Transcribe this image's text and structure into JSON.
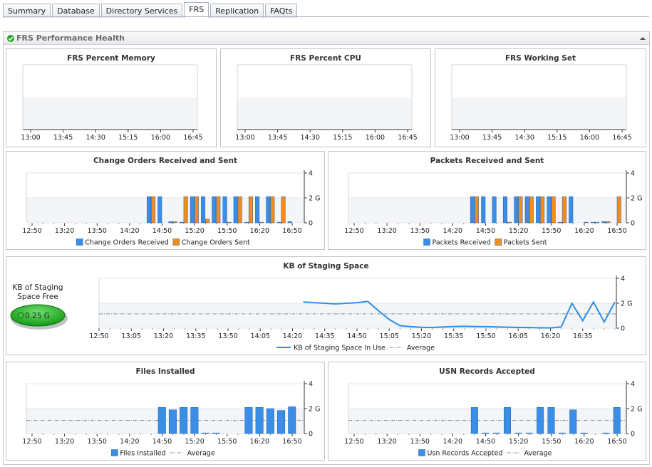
{
  "tabs": [
    "Summary",
    "Database",
    "Directory Services",
    "FRS",
    "Replication",
    "FAQts"
  ],
  "active_tab": 3,
  "panel_title": "FRS Performance Health",
  "chart_data": [
    {
      "type": "line",
      "title": "FRS Percent Memory",
      "categories": [
        "13:00",
        "13:45",
        "14:30",
        "15:15",
        "16:00",
        "16:45"
      ],
      "series": []
    },
    {
      "type": "line",
      "title": "FRS Percent CPU",
      "categories": [
        "13:00",
        "13:45",
        "14:30",
        "15:15",
        "16:00",
        "16:45"
      ],
      "series": []
    },
    {
      "type": "line",
      "title": "FRS Working Set",
      "categories": [
        "13:00",
        "13:45",
        "14:30",
        "15:15",
        "16:00",
        "16:45"
      ],
      "series": []
    },
    {
      "type": "bar",
      "title": "Change Orders Received and Sent",
      "categories": [
        "12:50",
        null,
        null,
        "13:20",
        null,
        null,
        "13:50",
        null,
        null,
        "14:20",
        null,
        null,
        "14:50",
        null,
        null,
        "15:20",
        null,
        null,
        "15:50",
        null,
        null,
        "16:20",
        null,
        null,
        "16:50"
      ],
      "series": [
        {
          "name": "Change Orders Received",
          "color": "#3a8ee6",
          "values": [
            null,
            null,
            null,
            null,
            null,
            null,
            null,
            null,
            null,
            null,
            null,
            2.1,
            2.1,
            0.1,
            0.05,
            2.1,
            2.1,
            2.1,
            2.1,
            2.1,
            0.05,
            2.1,
            2.1,
            0.05,
            0.1
          ]
        },
        {
          "name": "Change Orders Sent",
          "color": "#f28c1e",
          "values": [
            null,
            null,
            null,
            null,
            null,
            null,
            null,
            null,
            null,
            null,
            null,
            2.1,
            0,
            0.1,
            2.1,
            2.1,
            0.3,
            2.1,
            0.05,
            2.1,
            2.1,
            0.05,
            2.1,
            2.1,
            0
          ]
        }
      ],
      "ylim": [
        0,
        4
      ],
      "yticks": [
        0,
        {
          "value": 2,
          "label": "2 G"
        },
        4
      ]
    },
    {
      "type": "bar",
      "title": "Packets Received and Sent",
      "categories": [
        "12:50",
        null,
        null,
        "13:20",
        null,
        null,
        "13:50",
        null,
        null,
        "14:20",
        null,
        null,
        "14:50",
        null,
        null,
        "15:20",
        null,
        null,
        "15:50",
        null,
        null,
        "16:20",
        null,
        null,
        "16:50"
      ],
      "series": [
        {
          "name": "Packets Received",
          "color": "#3a8ee6",
          "values": [
            null,
            null,
            null,
            null,
            null,
            null,
            null,
            null,
            null,
            null,
            null,
            2.1,
            2.1,
            2.1,
            2.1,
            2.1,
            2.1,
            2.1,
            2.1,
            0.05,
            2.1,
            0,
            0.05,
            0.1,
            0
          ]
        },
        {
          "name": "Packets Sent",
          "color": "#f28c1e",
          "values": [
            null,
            null,
            null,
            null,
            null,
            null,
            null,
            null,
            null,
            null,
            null,
            2.1,
            0,
            0,
            0.05,
            2.1,
            2.1,
            2.1,
            2.1,
            2.1,
            0,
            0.05,
            0.05,
            0.1,
            2.1
          ]
        }
      ],
      "ylim": [
        0,
        4
      ],
      "yticks": [
        0,
        {
          "value": 2,
          "label": "2 G"
        },
        4
      ]
    },
    {
      "type": "line",
      "title": "KB of Staging Space",
      "gauge": {
        "label": "KB of Staging Space Free",
        "value": 0.25,
        "value_label": "0.25 G"
      },
      "categories": [
        "12:50",
        null,
        null,
        "13:05",
        null,
        null,
        "13:20",
        null,
        null,
        "13:35",
        null,
        null,
        "13:50",
        null,
        null,
        "14:05",
        null,
        null,
        "14:20",
        null,
        null,
        "14:35",
        null,
        null,
        "14:50",
        null,
        null,
        "15:05",
        null,
        null,
        "15:20",
        null,
        null,
        "15:35",
        null,
        null,
        "15:50",
        null,
        null,
        "16:05",
        null,
        null,
        "16:20",
        null,
        null,
        "16:35",
        null,
        null,
        null
      ],
      "series": [
        {
          "name": "KB of Staging Space In Use",
          "color": "#2e8ee6",
          "values": [
            null,
            null,
            null,
            null,
            null,
            null,
            null,
            null,
            null,
            null,
            null,
            null,
            null,
            null,
            null,
            null,
            null,
            null,
            null,
            2.1,
            2.05,
            2.0,
            1.95,
            2.0,
            2.05,
            2.15,
            1.4,
            0.7,
            0.2,
            0.12,
            0.07,
            0.05,
            0.1,
            0.13,
            0.15,
            0.13,
            0.12,
            0.1,
            0.08,
            0.06,
            0.05,
            0.03,
            0.02,
            0.1,
            2.0,
            0.6,
            2.1,
            0.5,
            2.1
          ]
        }
      ],
      "average": {
        "name": "Average",
        "value": 1.15
      },
      "ylim": [
        0,
        4
      ],
      "yticks": [
        0,
        {
          "value": 2,
          "label": "2 G"
        },
        4
      ]
    },
    {
      "type": "bar",
      "title": "Files Installed",
      "categories": [
        "12:50",
        null,
        null,
        "13:20",
        null,
        null,
        "13:50",
        null,
        null,
        "14:20",
        null,
        null,
        "14:50",
        null,
        null,
        "15:20",
        null,
        null,
        "15:50",
        null,
        null,
        "16:20",
        null,
        null,
        "16:50"
      ],
      "series": [
        {
          "name": "Files Installed",
          "color": "#3a8ee6",
          "values": [
            null,
            null,
            null,
            null,
            null,
            null,
            null,
            null,
            null,
            null,
            null,
            null,
            2.1,
            1.9,
            2.1,
            2.1,
            0.05,
            0.05,
            null,
            null,
            2.1,
            2.1,
            2.0,
            1.85,
            2.15
          ]
        }
      ],
      "average": {
        "name": "Average",
        "value": 1.05
      },
      "ylim": [
        0,
        4
      ],
      "yticks": [
        0,
        {
          "value": 2,
          "label": "2 G"
        },
        4
      ]
    },
    {
      "type": "bar",
      "title": "USN Records Accepted",
      "categories": [
        "12:50",
        null,
        null,
        "13:20",
        null,
        null,
        "13:50",
        null,
        null,
        "14:20",
        null,
        null,
        "14:50",
        null,
        null,
        "15:20",
        null,
        null,
        "15:50",
        null,
        null,
        "16:20",
        null,
        null,
        "16:50"
      ],
      "series": [
        {
          "name": "Usn Records Accepted",
          "color": "#3a8ee6",
          "values": [
            null,
            null,
            null,
            null,
            null,
            null,
            null,
            null,
            null,
            null,
            null,
            2.1,
            0.05,
            0.05,
            2.1,
            0.05,
            0.05,
            2.1,
            2.1,
            0.05,
            1.9,
            0.05,
            null,
            0.05,
            2.1
          ]
        }
      ],
      "average": {
        "name": "Average",
        "value": 1.05
      },
      "ylim": [
        0,
        4
      ],
      "yticks": [
        0,
        {
          "value": 2,
          "label": "2 G"
        },
        4
      ]
    }
  ]
}
